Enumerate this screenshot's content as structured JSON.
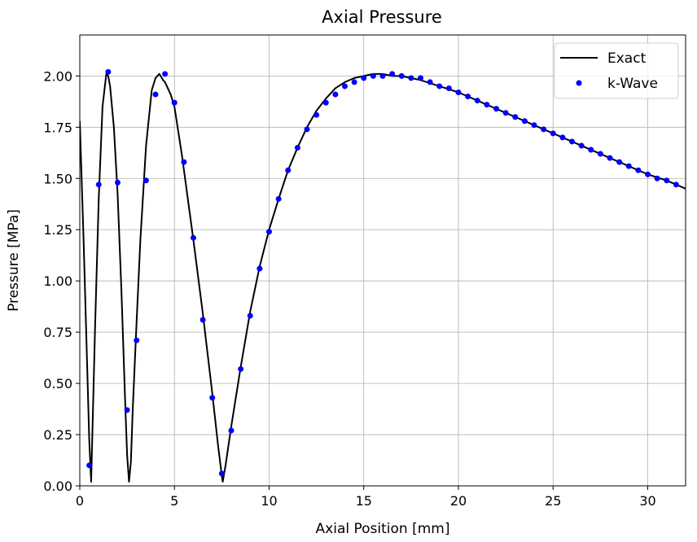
{
  "chart_data": {
    "type": "line",
    "title": "Axial Pressure",
    "xlabel": "Axial Position [mm]",
    "ylabel": "Pressure [MPa]",
    "xlim": [
      0,
      32
    ],
    "ylim": [
      0,
      2.2
    ],
    "xticks": [
      0,
      5,
      10,
      15,
      20,
      25,
      30
    ],
    "yticks": [
      0.0,
      0.25,
      0.5,
      0.75,
      1.0,
      1.25,
      1.5,
      1.75,
      2.0
    ],
    "xtick_labels": [
      "0",
      "5",
      "10",
      "15",
      "20",
      "25",
      "30"
    ],
    "ytick_labels": [
      "0.00",
      "0.25",
      "0.50",
      "0.75",
      "1.00",
      "1.25",
      "1.50",
      "1.75",
      "2.00"
    ],
    "grid": true,
    "legend_position": "top-right",
    "series": [
      {
        "name": "Exact",
        "style": "line",
        "color": "#000000",
        "x": [
          0,
          0.2,
          0.4,
          0.5,
          0.6,
          0.8,
          1.0,
          1.2,
          1.4,
          1.5,
          1.6,
          1.8,
          2.0,
          2.2,
          2.4,
          2.5,
          2.6,
          2.7,
          2.8,
          3.0,
          3.2,
          3.5,
          3.8,
          4.0,
          4.2,
          4.4,
          4.5,
          4.6,
          4.8,
          5.0,
          5.4,
          6.0,
          6.5,
          7.0,
          7.3,
          7.5,
          7.55,
          7.7,
          8.0,
          8.5,
          9.0,
          9.5,
          10.0,
          10.5,
          11.0,
          11.5,
          12.0,
          12.5,
          13.0,
          13.5,
          14.0,
          14.5,
          15.0,
          15.5,
          16.0,
          16.5,
          17.0,
          17.5,
          18.0,
          19.0,
          20.0,
          21.0,
          22.0,
          23.0,
          24.0,
          25.0,
          26.0,
          27.0,
          28.0,
          29.0,
          30.0,
          31.0,
          32.0
        ],
        "y": [
          1.78,
          1.2,
          0.55,
          0.22,
          0.02,
          0.75,
          1.4,
          1.85,
          2.01,
          2.0,
          1.95,
          1.75,
          1.42,
          0.95,
          0.4,
          0.15,
          0.02,
          0.12,
          0.38,
          0.8,
          1.2,
          1.66,
          1.93,
          1.99,
          2.01,
          1.98,
          1.97,
          1.95,
          1.91,
          1.85,
          1.61,
          1.2,
          0.84,
          0.45,
          0.2,
          0.05,
          0.02,
          0.1,
          0.29,
          0.58,
          0.85,
          1.07,
          1.25,
          1.4,
          1.54,
          1.65,
          1.75,
          1.83,
          1.89,
          1.94,
          1.97,
          1.99,
          2.0,
          2.01,
          2.01,
          2.0,
          2.0,
          1.99,
          1.98,
          1.95,
          1.92,
          1.88,
          1.84,
          1.8,
          1.76,
          1.72,
          1.68,
          1.64,
          1.6,
          1.56,
          1.52,
          1.49,
          1.45
        ]
      },
      {
        "name": "k-Wave",
        "style": "markers",
        "color": "#0000ff",
        "x": [
          0.5,
          1.0,
          1.5,
          2.0,
          2.5,
          3.0,
          3.5,
          4.0,
          4.5,
          5.0,
          5.5,
          6.0,
          6.5,
          7.0,
          7.5,
          8.0,
          8.5,
          9.0,
          9.5,
          10.0,
          10.5,
          11.0,
          11.5,
          12.0,
          12.5,
          13.0,
          13.5,
          14.0,
          14.5,
          15.0,
          15.5,
          16.0,
          16.5,
          17.0,
          17.5,
          18.0,
          18.5,
          19.0,
          19.5,
          20.0,
          20.5,
          21.0,
          21.5,
          22.0,
          22.5,
          23.0,
          23.5,
          24.0,
          24.5,
          25.0,
          25.5,
          26.0,
          26.5,
          27.0,
          27.5,
          28.0,
          28.5,
          29.0,
          29.5,
          30.0,
          30.5,
          31.0,
          31.5
        ],
        "y": [
          0.1,
          1.47,
          2.02,
          1.48,
          0.37,
          0.71,
          1.49,
          1.91,
          2.01,
          1.87,
          1.58,
          1.21,
          0.81,
          0.43,
          0.06,
          0.27,
          0.57,
          0.83,
          1.06,
          1.24,
          1.4,
          1.54,
          1.65,
          1.74,
          1.81,
          1.87,
          1.91,
          1.95,
          1.97,
          1.99,
          2.0,
          2.0,
          2.01,
          2.0,
          1.99,
          1.99,
          1.97,
          1.95,
          1.94,
          1.92,
          1.9,
          1.88,
          1.86,
          1.84,
          1.82,
          1.8,
          1.78,
          1.76,
          1.74,
          1.72,
          1.7,
          1.68,
          1.66,
          1.64,
          1.62,
          1.6,
          1.58,
          1.56,
          1.54,
          1.52,
          1.5,
          1.49,
          1.47
        ]
      }
    ]
  }
}
